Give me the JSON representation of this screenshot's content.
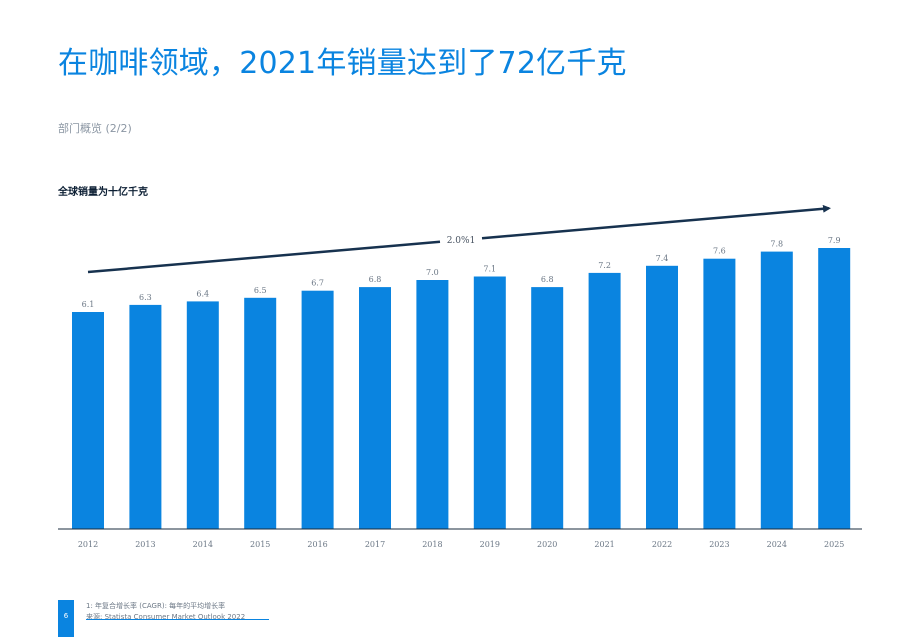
{
  "page": {
    "title": "在咖啡领域，2021年销量达到了72亿千克",
    "subtitle": "部门概览 (2/2)",
    "page_number": "6"
  },
  "chart_data": {
    "type": "bar",
    "title": "全球销量为十亿千克",
    "categories": [
      "2012",
      "2013",
      "2014",
      "2015",
      "2016",
      "2017",
      "2018",
      "2019",
      "2020",
      "2021",
      "2022",
      "2023",
      "2024",
      "2025"
    ],
    "values": [
      6.1,
      6.3,
      6.4,
      6.5,
      6.7,
      6.8,
      7.0,
      7.1,
      6.8,
      7.2,
      7.4,
      7.6,
      7.8,
      7.9
    ],
    "value_labels": [
      "6.1",
      "6.3",
      "6.4",
      "6.5",
      "6.7",
      "6.8",
      "7.0",
      "7.1",
      "6.8",
      "7.2",
      "7.4",
      "7.6",
      "7.8",
      "7.9"
    ],
    "trend_annotation": "2.0%1",
    "bar_color": "#0a84e0",
    "arrow_color": "#17324f",
    "ylim": [
      0,
      7.9
    ],
    "grid": false
  },
  "footnotes": {
    "note": "1: 年复合增长率 (CAGR): 每年的平均增长率",
    "source": "来源: Statista Consumer Market Outlook 2022"
  }
}
